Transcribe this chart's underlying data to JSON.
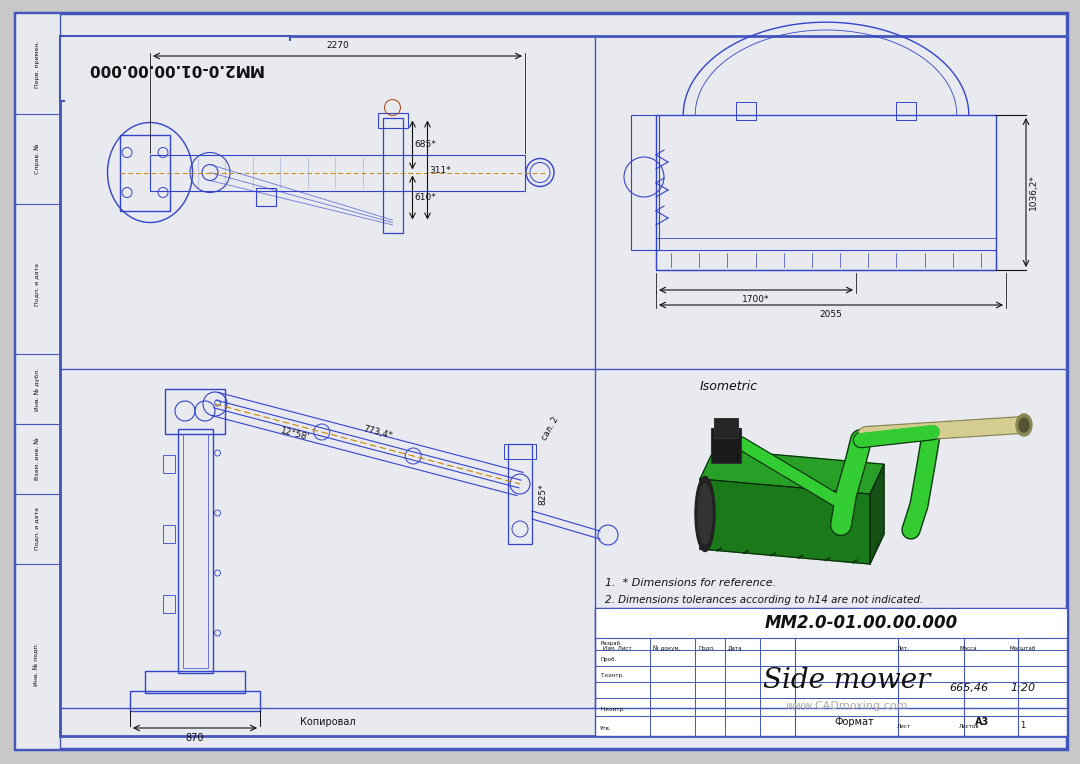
{
  "bg_outer": "#c8c8c8",
  "bg_drawing": "#e8eaf0",
  "bg_white": "#ffffff",
  "border_color": "#4455bb",
  "line_color": "#3344cc",
  "dim_color": "#111111",
  "gray_line": "#888888",
  "title": "MM2.0-01.00.00.000",
  "drawing_title": "MM2.0-01.00.00.000",
  "product_name": "Side mower",
  "mass": "665,46",
  "scale": "1:20",
  "format_val": "A3",
  "dim1": "2270",
  "dim2": "311*",
  "dim3": "610*",
  "dim4": "685*",
  "dim5": "1036,2*",
  "dim6": "1700*",
  "dim7": "2055",
  "dim8": "12°58'",
  "dim9": "773,4*",
  "dim10": "825*",
  "dim11": "870",
  "note1": "1.  * Dimensions for reference.",
  "note2": "2. Dimensions tolerances according to h14 are not indicated.",
  "isometric_label": "Isometric",
  "copied_by": "Копировал",
  "format_label": "Формат",
  "lbl_perv": "Перв. примен.",
  "lbl_sprav": "Справ. №",
  "lbl_podp1": "Подп. и дата",
  "lbl_inv_dubl": "Инв. № дубл.",
  "lbl_vzam": "Взам. инв. №",
  "lbl_podp2": "Подп. и дата",
  "lbl_inv_podp": "Инв. № подп.",
  "lbl_izm": "Изм. Лист",
  "lbl_no_dok": "№ докум.",
  "lbl_podp": "Подп.",
  "lbl_data": "Дата",
  "lbl_razrab": "Разраб.",
  "lbl_prob": "Проб.",
  "lbl_tkont": "Т.контр.",
  "lbl_nkont": "Н.контр.",
  "lbl_utv": "Утв.",
  "lbl_lit": "Лит.",
  "lbl_massa": "Масса",
  "lbl_masshtab": "Масштаб",
  "lbl_list": "Лист",
  "lbl_listov": "Листов",
  "lbl_website": "www.CADmoxing.com",
  "green_dark": "#1a7a1a",
  "green_bright": "#33cc33",
  "green_mid": "#28a028",
  "black_part": "#1a1a1a",
  "cream_shaft": "#d4cc90"
}
